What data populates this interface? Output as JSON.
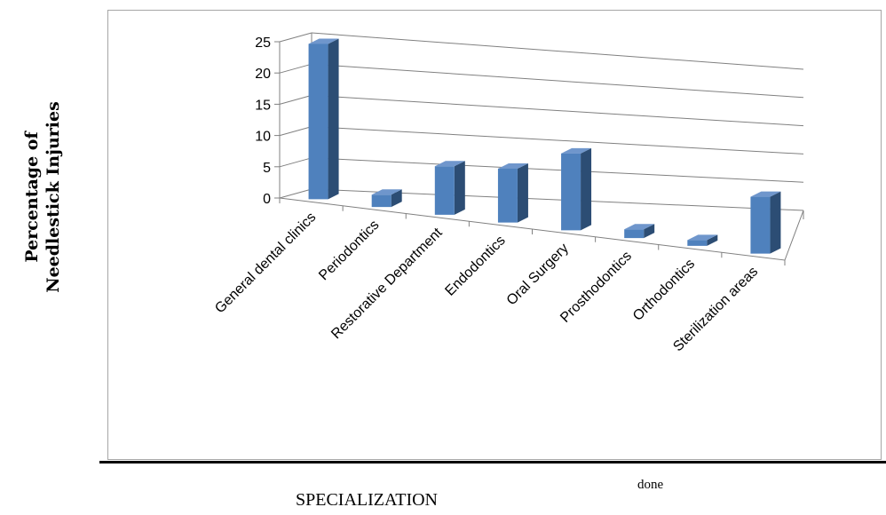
{
  "chart_data": {
    "type": "bar",
    "subtype": "3d-column",
    "categories": [
      "General dental clinics",
      "Periodontics",
      "Restorative Department",
      "Endodontics",
      "Oral Surgery",
      "Prosthodontics",
      "Orthodontics",
      "Sterilization areas"
    ],
    "values": [
      25,
      2,
      8,
      9,
      13,
      1.5,
      1,
      10
    ],
    "ylabel_line1": "Percentage of",
    "ylabel_line2": "Needlestick Injuries",
    "xlabel": "SPECIALIZATION",
    "ylim": [
      0,
      25
    ],
    "yticks": [
      "0",
      "5",
      "10",
      "15",
      "20",
      "25"
    ],
    "grid": true,
    "legend": "none",
    "bar_color": "#4f81bd"
  },
  "footnote": "done"
}
